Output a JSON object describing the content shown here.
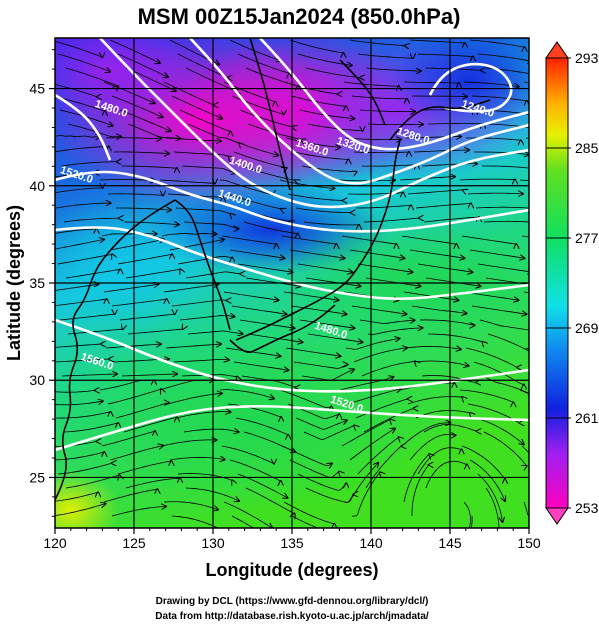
{
  "chart_data": {
    "type": "heatmap",
    "title": "MSM 00Z15Jan2024 (850.0hPa)",
    "xlabel": "Longitude (degrees)",
    "ylabel": "Latitude  (degrees)",
    "xlim": [
      120,
      150
    ],
    "ylim": [
      22.4,
      47.6
    ],
    "x_ticks": [
      120,
      125,
      130,
      135,
      140,
      145,
      150
    ],
    "y_ticks": [
      25,
      30,
      35,
      40,
      45
    ],
    "grid": true,
    "colorbar": {
      "min": 253,
      "max": 293,
      "ticks": [
        253,
        261,
        269,
        277,
        285,
        293
      ],
      "extend": "both"
    },
    "contour_labels": [
      {
        "text": "1480.0",
        "lon": 123.5,
        "lat": 43.8
      },
      {
        "text": "1520.0",
        "lon": 121.3,
        "lat": 40.4
      },
      {
        "text": "1440.0",
        "lon": 131.3,
        "lat": 39.2
      },
      {
        "text": "1400.0",
        "lon": 132.0,
        "lat": 40.9
      },
      {
        "text": "1360.0",
        "lon": 136.2,
        "lat": 41.8
      },
      {
        "text": "1320.0",
        "lon": 138.8,
        "lat": 41.9
      },
      {
        "text": "1280.0",
        "lon": 142.6,
        "lat": 42.4
      },
      {
        "text": "1240.0",
        "lon": 146.7,
        "lat": 43.8
      },
      {
        "text": "1480.0",
        "lon": 137.4,
        "lat": 32.4
      },
      {
        "text": "1520.0",
        "lon": 138.4,
        "lat": 28.6
      },
      {
        "text": "1560.0",
        "lon": 122.6,
        "lat": 30.8
      }
    ],
    "credits": [
      "Drawing by DCL (https://www.gfd-dennou.org/library/dcl/)",
      "Data from http://database.rish.kyoto-u.ac.jp/arch/jmadata/"
    ]
  }
}
